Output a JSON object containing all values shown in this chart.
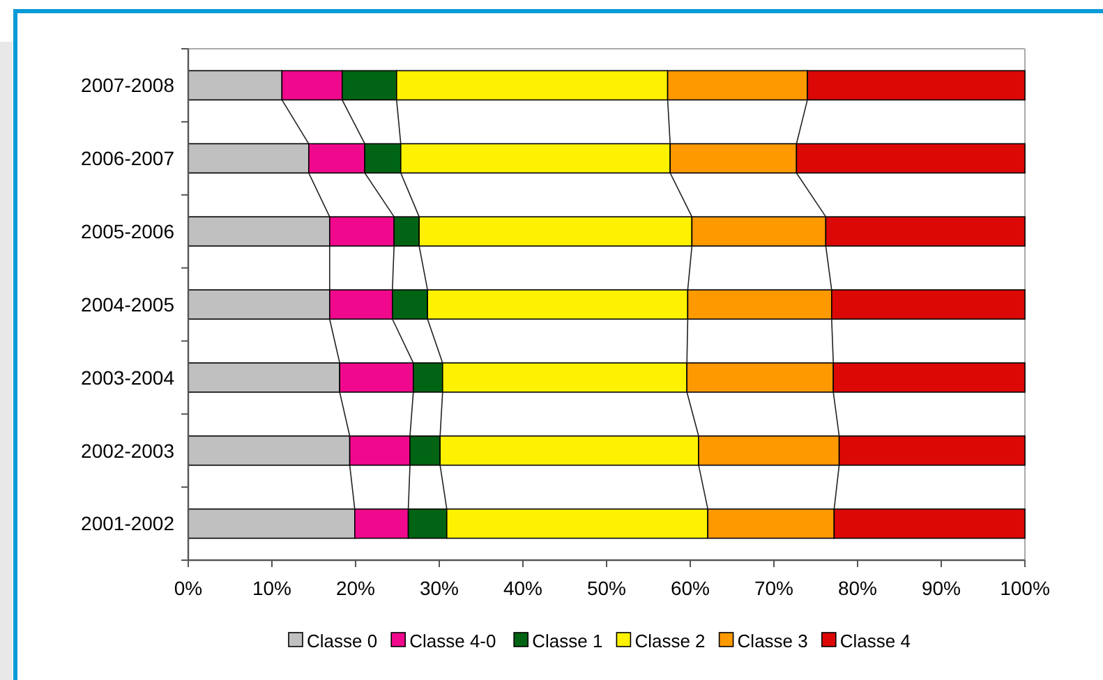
{
  "chart_data": {
    "type": "bar",
    "orientation": "horizontal",
    "stacked": true,
    "categories": [
      "2007-2008",
      "2006-2007",
      "2005-2006",
      "2004-2005",
      "2003-2004",
      "2002-2003",
      "2001-2002"
    ],
    "series": [
      {
        "name": "Classe 0",
        "color": "#c0c0c0",
        "values": [
          11.2,
          14.4,
          16.9,
          16.9,
          18.1,
          19.3,
          19.9
        ]
      },
      {
        "name": "Classe 4-0",
        "color": "#f0098c",
        "values": [
          7.2,
          6.7,
          7.7,
          7.5,
          8.8,
          7.2,
          6.4
        ]
      },
      {
        "name": "Classe 1",
        "color": "#006414",
        "values": [
          6.5,
          4.3,
          3.0,
          4.2,
          3.5,
          3.6,
          4.6
        ]
      },
      {
        "name": "Classe 2",
        "color": "#fff200",
        "values": [
          32.4,
          32.2,
          32.6,
          31.1,
          29.2,
          30.9,
          31.2
        ]
      },
      {
        "name": "Classe 3",
        "color": "#ff9900",
        "values": [
          16.7,
          15.1,
          16.0,
          17.2,
          17.5,
          16.8,
          15.1
        ]
      },
      {
        "name": "Classe 4",
        "color": "#dc0806",
        "values": [
          26.0,
          27.3,
          23.8,
          23.1,
          22.9,
          22.2,
          22.8
        ]
      }
    ],
    "xlim": [
      0,
      100
    ],
    "xticks": [
      {
        "value": 0,
        "label": "0%"
      },
      {
        "value": 10,
        "label": "10%"
      },
      {
        "value": 20,
        "label": "20%"
      },
      {
        "value": 30,
        "label": "30%"
      },
      {
        "value": 40,
        "label": "40%"
      },
      {
        "value": 50,
        "label": "50%"
      },
      {
        "value": 60,
        "label": "60%"
      },
      {
        "value": 70,
        "label": "70%"
      },
      {
        "value": 80,
        "label": "80%"
      },
      {
        "value": 90,
        "label": "90%"
      },
      {
        "value": 100,
        "label": "100%"
      }
    ],
    "grid": false,
    "legend": "bottom"
  }
}
